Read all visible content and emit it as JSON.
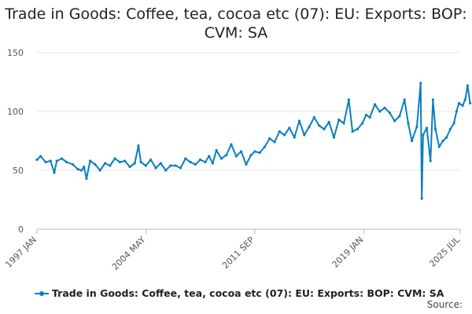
{
  "title": "Trade in Goods: Coffee, tea, cocoa etc (07): EU: Exports: BOP: CVM: SA",
  "source_label": "Source:",
  "chart_data": {
    "type": "line",
    "title": "Trade in Goods: Coffee, tea, cocoa etc (07): EU: Exports: BOP: CVM: SA",
    "x_ticks": [
      "1997 JAN",
      "2004 MAY",
      "2011 SEP",
      "2019 JAN",
      "2025 JUL"
    ],
    "y_ticks": [
      0,
      50,
      100,
      150
    ],
    "ylim": [
      0,
      150
    ],
    "xlim": [
      "1997-01",
      "2025-07"
    ],
    "grid": true,
    "legend": "bottom",
    "series": [
      {
        "name": "Trade in Goods: Coffee, tea, cocoa etc (07): EU: Exports: BOP: CVM: SA",
        "color": "#0a7fc2",
        "points": [
          [
            "1997-01",
            59
          ],
          [
            "1997-04",
            62
          ],
          [
            "1997-08",
            57
          ],
          [
            "1997-12",
            58
          ],
          [
            "1998-03",
            48
          ],
          [
            "1998-05",
            58
          ],
          [
            "1998-09",
            60
          ],
          [
            "1999-01",
            57
          ],
          [
            "1999-06",
            55
          ],
          [
            "1999-10",
            51
          ],
          [
            "2000-01",
            50
          ],
          [
            "2000-03",
            53
          ],
          [
            "2000-05",
            43
          ],
          [
            "2000-08",
            58
          ],
          [
            "2000-12",
            55
          ],
          [
            "2001-04",
            50
          ],
          [
            "2001-08",
            56
          ],
          [
            "2001-12",
            54
          ],
          [
            "2002-04",
            60
          ],
          [
            "2002-08",
            57
          ],
          [
            "2002-12",
            58
          ],
          [
            "2003-04",
            53
          ],
          [
            "2003-08",
            56
          ],
          [
            "2003-11",
            71
          ],
          [
            "2004-01",
            57
          ],
          [
            "2004-05",
            54
          ],
          [
            "2004-09",
            59
          ],
          [
            "2005-01",
            52
          ],
          [
            "2005-05",
            56
          ],
          [
            "2005-09",
            50
          ],
          [
            "2006-01",
            54
          ],
          [
            "2006-05",
            54
          ],
          [
            "2006-09",
            52
          ],
          [
            "2007-01",
            60
          ],
          [
            "2007-05",
            57
          ],
          [
            "2007-09",
            55
          ],
          [
            "2008-01",
            59
          ],
          [
            "2008-05",
            57
          ],
          [
            "2008-08",
            62
          ],
          [
            "2008-11",
            56
          ],
          [
            "2009-02",
            67
          ],
          [
            "2009-06",
            60
          ],
          [
            "2009-10",
            63
          ],
          [
            "2010-02",
            72
          ],
          [
            "2010-06",
            62
          ],
          [
            "2010-10",
            66
          ],
          [
            "2011-02",
            55
          ],
          [
            "2011-06",
            63
          ],
          [
            "2011-09",
            66
          ],
          [
            "2012-01",
            65
          ],
          [
            "2012-05",
            70
          ],
          [
            "2012-09",
            77
          ],
          [
            "2013-01",
            74
          ],
          [
            "2013-05",
            83
          ],
          [
            "2013-09",
            80
          ],
          [
            "2014-01",
            86
          ],
          [
            "2014-05",
            78
          ],
          [
            "2014-09",
            92
          ],
          [
            "2015-01",
            80
          ],
          [
            "2015-05",
            87
          ],
          [
            "2015-09",
            95
          ],
          [
            "2016-01",
            88
          ],
          [
            "2016-05",
            85
          ],
          [
            "2016-09",
            91
          ],
          [
            "2017-01",
            78
          ],
          [
            "2017-05",
            93
          ],
          [
            "2017-09",
            90
          ],
          [
            "2018-01",
            110
          ],
          [
            "2018-04",
            83
          ],
          [
            "2018-08",
            85
          ],
          [
            "2018-12",
            90
          ],
          [
            "2019-03",
            97
          ],
          [
            "2019-06",
            95
          ],
          [
            "2019-10",
            106
          ],
          [
            "2020-02",
            100
          ],
          [
            "2020-06",
            103
          ],
          [
            "2020-10",
            99
          ],
          [
            "2021-02",
            92
          ],
          [
            "2021-06",
            96
          ],
          [
            "2021-10",
            110
          ],
          [
            "2022-01",
            90
          ],
          [
            "2022-04",
            75
          ],
          [
            "2022-08",
            87
          ],
          [
            "2022-11",
            124
          ],
          [
            "2022-12",
            26
          ],
          [
            "2023-01",
            80
          ],
          [
            "2023-04",
            86
          ],
          [
            "2023-07",
            58
          ],
          [
            "2023-09",
            110
          ],
          [
            "2023-11",
            85
          ],
          [
            "2024-02",
            70
          ],
          [
            "2024-05",
            75
          ],
          [
            "2024-08",
            78
          ],
          [
            "2024-11",
            85
          ],
          [
            "2025-02",
            90
          ],
          [
            "2025-04",
            100
          ],
          [
            "2025-06",
            107
          ],
          [
            "2025-09",
            105
          ],
          [
            "2025-11",
            110
          ],
          [
            "2026-01",
            122
          ],
          [
            "2026-03",
            107
          ]
        ]
      }
    ]
  }
}
